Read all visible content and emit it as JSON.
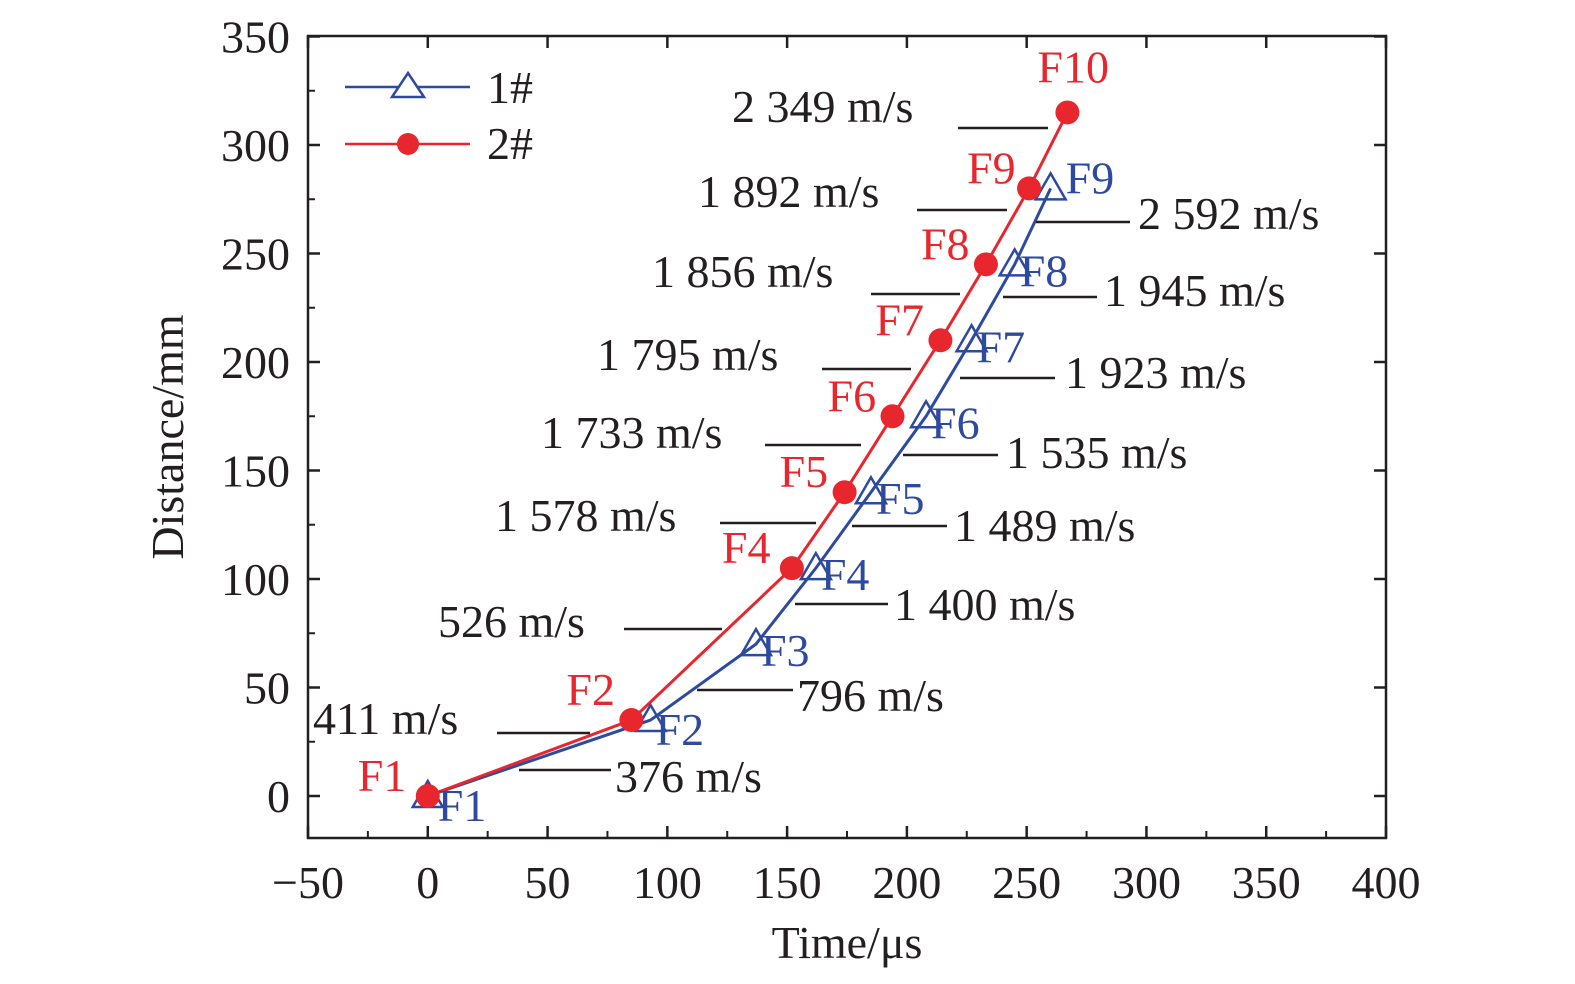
{
  "chart_data": {
    "type": "line",
    "xlabel": "Time/μs",
    "ylabel": "Distance/mm",
    "xlim": [
      -50,
      400
    ],
    "ylim": [
      -20,
      350
    ],
    "xticks": [
      -50,
      0,
      50,
      100,
      150,
      200,
      250,
      300,
      350,
      400
    ],
    "yticks": [
      0,
      50,
      100,
      150,
      200,
      250,
      300,
      350
    ],
    "xtick_labels": [
      "−50",
      "0",
      "50",
      "100",
      "150",
      "200",
      "250",
      "300",
      "350",
      "400"
    ],
    "ytick_labels": [
      "0",
      "50",
      "100",
      "150",
      "200",
      "250",
      "300",
      "350"
    ],
    "legend_position": "top-left",
    "series": [
      {
        "name": "1#",
        "color": "#2e4a9e",
        "marker": "open-triangle",
        "x": [
          0,
          93,
          137,
          162,
          185,
          208,
          227,
          245,
          260
        ],
        "y": [
          0,
          35,
          70,
          105,
          140,
          175,
          210,
          245,
          280
        ],
        "labels": [
          "F1",
          "F2",
          "F3",
          "F4",
          "F5",
          "F6",
          "F7",
          "F8",
          "F9"
        ]
      },
      {
        "name": "2#",
        "color": "#e8262d",
        "marker": "filled-circle",
        "x": [
          0,
          85,
          152,
          174,
          194,
          214,
          233,
          251,
          267
        ],
        "y": [
          0,
          35,
          105,
          140,
          175,
          210,
          245,
          280,
          315
        ],
        "labels": [
          "F1",
          "F2",
          "F4",
          "F5",
          "F6",
          "F7",
          "F8",
          "F9",
          "F10"
        ]
      }
    ],
    "annotations": {
      "series_2": [
        "411 m/s",
        "526 m/s",
        "1 578 m/s",
        "1 733 m/s",
        "1 795 m/s",
        "1 856 m/s",
        "1 892 m/s",
        "2 349 m/s"
      ],
      "series_1": [
        "376 m/s",
        "796 m/s",
        "1 400 m/s",
        "1 489 m/s",
        "1 535 m/s",
        "1 923 m/s",
        "1 945 m/s",
        "2 592 m/s"
      ]
    }
  }
}
